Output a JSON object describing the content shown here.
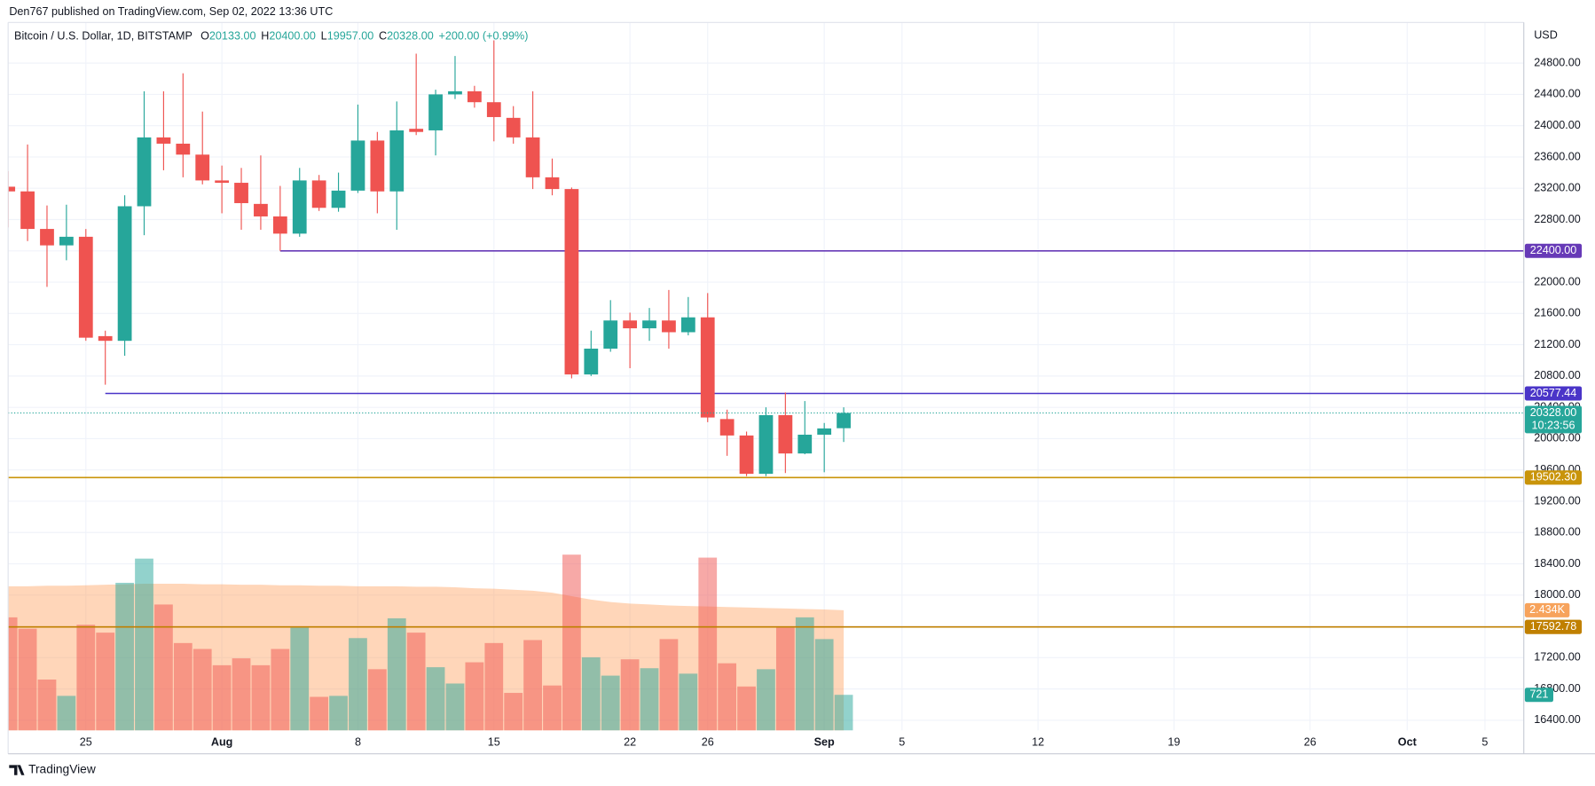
{
  "header": "Den767 published on TradingView.com, Sep 02, 2022 13:36 UTC",
  "legend": {
    "symbol": "Bitcoin / U.S. Dollar, 1D, BITSTAMP",
    "ohlc": [
      {
        "key": "O",
        "value": "20133.00"
      },
      {
        "key": "H",
        "value": "20400.00"
      },
      {
        "key": "L",
        "value": "19957.00"
      },
      {
        "key": "C",
        "value": "20328.00"
      }
    ],
    "change": "+200.00 (+0.99%)"
  },
  "footer": "TradingView",
  "chart_data": {
    "type": "candlestick",
    "currency": "USD",
    "up_color": "#26a69a",
    "down_color": "#ef5350",
    "x": [
      "2022-07-21",
      "2022-07-22",
      "2022-07-23",
      "2022-07-24",
      "2022-07-25",
      "2022-07-26",
      "2022-07-27",
      "2022-07-28",
      "2022-07-29",
      "2022-07-30",
      "2022-07-31",
      "2022-08-01",
      "2022-08-02",
      "2022-08-03",
      "2022-08-04",
      "2022-08-05",
      "2022-08-06",
      "2022-08-07",
      "2022-08-08",
      "2022-08-09",
      "2022-08-10",
      "2022-08-11",
      "2022-08-12",
      "2022-08-13",
      "2022-08-14",
      "2022-08-15",
      "2022-08-16",
      "2022-08-17",
      "2022-08-18",
      "2022-08-19",
      "2022-08-20",
      "2022-08-21",
      "2022-08-22",
      "2022-08-23",
      "2022-08-24",
      "2022-08-25",
      "2022-08-26",
      "2022-08-27",
      "2022-08-28",
      "2022-08-29",
      "2022-08-30",
      "2022-08-31",
      "2022-09-01",
      "2022-09-02"
    ],
    "open": [
      23220,
      23160,
      22680,
      22470,
      22580,
      21310,
      21250,
      22970,
      23850,
      23770,
      23630,
      23300,
      23270,
      23000,
      22840,
      22620,
      23300,
      22950,
      23170,
      23810,
      23160,
      23960,
      23940,
      24400,
      24440,
      24300,
      24100,
      23850,
      23340,
      23190,
      20820,
      21150,
      21510,
      21410,
      21510,
      21360,
      21550,
      20250,
      20040,
      19550,
      20300,
      19810,
      20050,
      20133
    ],
    "high": [
      23420,
      23760,
      22980,
      22990,
      22680,
      21380,
      23110,
      24440,
      24440,
      24670,
      24180,
      23490,
      23460,
      23620,
      23230,
      23460,
      23370,
      23400,
      24270,
      23920,
      24310,
      24920,
      24460,
      24890,
      24510,
      25090,
      24250,
      24440,
      23580,
      23210,
      21380,
      21770,
      21610,
      21670,
      21900,
      21810,
      21860,
      20370,
      20090,
      20400,
      20590,
      20480,
      20200,
      20400
    ],
    "low": [
      22700,
      22525,
      21940,
      22280,
      21250,
      20690,
      21060,
      22600,
      23430,
      23340,
      23250,
      22880,
      22670,
      22670,
      22400,
      22580,
      22910,
      22900,
      23140,
      22880,
      22670,
      23880,
      23620,
      24340,
      24230,
      23800,
      23770,
      23190,
      23110,
      20770,
      20800,
      21110,
      20900,
      21250,
      21150,
      21320,
      20210,
      19780,
      19520,
      19520,
      19560,
      19800,
      19570,
      19957
    ],
    "close": [
      23160,
      22680,
      22470,
      22580,
      21290,
      21250,
      22970,
      23850,
      23770,
      23630,
      23300,
      23270,
      23010,
      22840,
      22620,
      23300,
      22950,
      23170,
      23810,
      23160,
      23940,
      23920,
      24400,
      24440,
      24300,
      24110,
      23850,
      23340,
      23190,
      20820,
      21150,
      21510,
      21410,
      21510,
      21360,
      21550,
      20270,
      20040,
      19550,
      20300,
      19810,
      20050,
      20130,
      20328
    ],
    "xlim": [
      "2022-07-21",
      "2022-10-07"
    ],
    "xticks": [
      {
        "value": "2022-07-25",
        "label": "25"
      },
      {
        "value": "2022-08-01",
        "label": "Aug"
      },
      {
        "value": "2022-08-08",
        "label": "8"
      },
      {
        "value": "2022-08-15",
        "label": "15"
      },
      {
        "value": "2022-08-22",
        "label": "22"
      },
      {
        "value": "2022-08-26",
        "label": "26"
      },
      {
        "value": "2022-09-01",
        "label": "Sep"
      },
      {
        "value": "2022-09-05",
        "label": "5"
      },
      {
        "value": "2022-09-12",
        "label": "12"
      },
      {
        "value": "2022-09-19",
        "label": "19"
      },
      {
        "value": "2022-09-26",
        "label": "26"
      },
      {
        "value": "2022-10-01",
        "label": "Oct"
      },
      {
        "value": "2022-10-05",
        "label": "5"
      }
    ],
    "ylim": [
      16270,
      25320
    ],
    "yticks": [
      {
        "value": 16400,
        "label": "16400.00"
      },
      {
        "value": 16800,
        "label": "16800.00"
      },
      {
        "value": 17200,
        "label": "17200.00"
      },
      {
        "value": 17600,
        "label": "17600.00"
      },
      {
        "value": 18000,
        "label": "18000.00"
      },
      {
        "value": 18400,
        "label": "18400.00"
      },
      {
        "value": 18800,
        "label": "18800.00"
      },
      {
        "value": 19200,
        "label": "19200.00"
      },
      {
        "value": 19600,
        "label": "19600.00"
      },
      {
        "value": 20000,
        "label": "20000.00"
      },
      {
        "value": 20400,
        "label": "20400.00"
      },
      {
        "value": 20800,
        "label": "20800.00"
      },
      {
        "value": 21200,
        "label": "21200.00"
      },
      {
        "value": 21600,
        "label": "21600.00"
      },
      {
        "value": 22000,
        "label": "22000.00"
      },
      {
        "value": 22400,
        "label": "22400.00"
      },
      {
        "value": 22800,
        "label": "22800.00"
      },
      {
        "value": 23200,
        "label": "23200.00"
      },
      {
        "value": 23600,
        "label": "23600.00"
      },
      {
        "value": 24000,
        "label": "24000.00"
      },
      {
        "value": 24400,
        "label": "24400.00"
      },
      {
        "value": 24800,
        "label": "24800.00"
      }
    ],
    "grid": true,
    "hlines": [
      {
        "value": 22400,
        "label": "22400.00",
        "color": "#673ab7",
        "start": "2022-08-04"
      },
      {
        "value": 20577.44,
        "label": "20577.44",
        "color": "#4a35c8",
        "start": "2022-07-26"
      },
      {
        "value": 19502.3,
        "label": "19502.30",
        "color": "#c9940a",
        "start": "2022-07-21"
      },
      {
        "value": 17592.78,
        "label": "17592.78",
        "color": "#c08000",
        "start": "2022-07-21"
      }
    ],
    "price_tag": {
      "value": 20328,
      "label": "20328.00",
      "countdown": "10:23:56"
    },
    "volume": {
      "ylim": [
        0,
        14340
      ],
      "values": [
        2290,
        2060,
        1030,
        700,
        2140,
        1980,
        2990,
        3480,
        2550,
        1770,
        1650,
        1320,
        1460,
        1320,
        1650,
        2080,
        680,
        700,
        1870,
        1240,
        2270,
        1980,
        1280,
        950,
        1380,
        1770,
        760,
        1830,
        910,
        3560,
        1480,
        1110,
        1440,
        1260,
        1850,
        1150,
        3500,
        1360,
        890,
        1240,
        2080,
        2290,
        1850,
        721
      ],
      "ma": [
        2920,
        2920,
        2930,
        2930,
        2940,
        2950,
        2960,
        2970,
        2970,
        2970,
        2960,
        2960,
        2950,
        2950,
        2940,
        2940,
        2930,
        2930,
        2920,
        2920,
        2920,
        2910,
        2910,
        2900,
        2880,
        2870,
        2850,
        2830,
        2790,
        2720,
        2650,
        2600,
        2570,
        2550,
        2530,
        2520,
        2510,
        2500,
        2490,
        2480,
        2470,
        2460,
        2450,
        2434
      ],
      "ma_color": "#ff9850",
      "ma_tag": {
        "value": 2434,
        "label": "2.434K"
      },
      "last_tag": {
        "value": 721,
        "label": "721"
      }
    }
  }
}
